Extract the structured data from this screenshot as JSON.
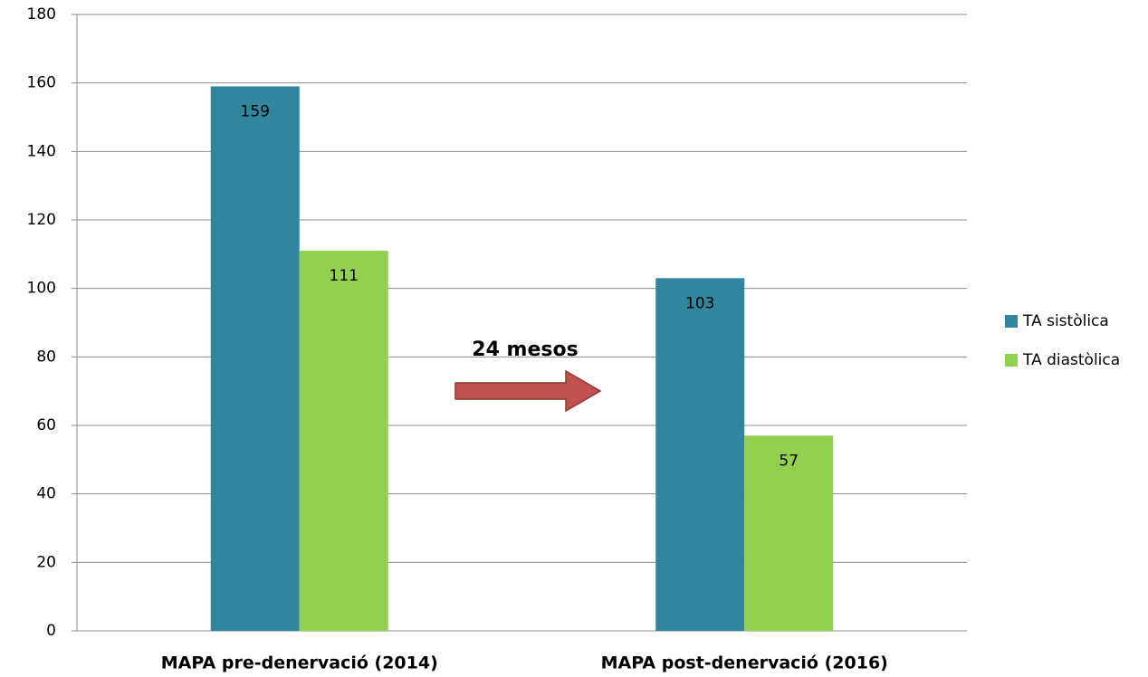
{
  "chart_data": {
    "type": "bar",
    "categories": [
      "MAPA pre-denervació (2014)",
      "MAPA post-denervació (2016)"
    ],
    "series": [
      {
        "name": "TA sistòlica",
        "color": "#31859c",
        "values": [
          159,
          103
        ]
      },
      {
        "name": "TA diastòlica",
        "color": "#92d050",
        "values": [
          111,
          57
        ]
      }
    ],
    "ylim": [
      0,
      180
    ],
    "yticks": [
      0,
      20,
      40,
      60,
      80,
      100,
      120,
      140,
      160,
      180
    ],
    "grid": true,
    "legend": "right",
    "annotation": "24 mesos"
  }
}
